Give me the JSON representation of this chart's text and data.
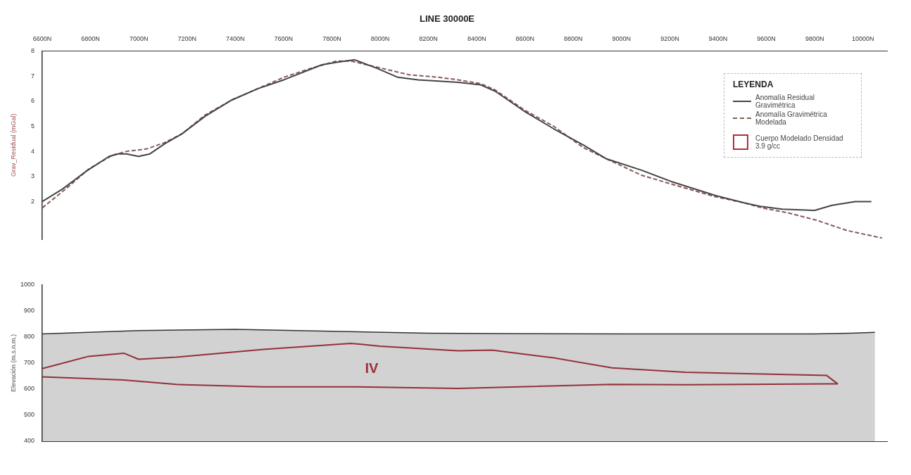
{
  "chart_data": [
    {
      "type": "line",
      "title": "LINE 30000E",
      "ylabel": "Grav_Residual (mGal)",
      "legend_title": "LEYENDA",
      "legend": "top right",
      "grid": false,
      "marker": "none",
      "xlim": [
        6600,
        10100
      ],
      "xticks": [
        {
          "value": 6600,
          "label": "6600N"
        },
        {
          "value": 6800,
          "label": "6800N"
        },
        {
          "value": 7000,
          "label": "7000N"
        },
        {
          "value": 7200,
          "label": "7200N"
        },
        {
          "value": 7400,
          "label": "7400N"
        },
        {
          "value": 7600,
          "label": "7600N"
        },
        {
          "value": 7800,
          "label": "7800N"
        },
        {
          "value": 8000,
          "label": "8000N"
        },
        {
          "value": 8200,
          "label": "8200N"
        },
        {
          "value": 8400,
          "label": "8400N"
        },
        {
          "value": 8600,
          "label": "8600N"
        },
        {
          "value": 8800,
          "label": "8800N"
        },
        {
          "value": 9000,
          "label": "9000N"
        },
        {
          "value": 9200,
          "label": "9200N"
        },
        {
          "value": 9400,
          "label": "9400N"
        },
        {
          "value": 9600,
          "label": "9600N"
        },
        {
          "value": 9800,
          "label": "9800N"
        },
        {
          "value": 10000,
          "label": "10000N"
        }
      ],
      "ylim": [
        0.5,
        8
      ],
      "yticks": [
        2,
        3,
        4,
        5,
        6,
        7,
        8
      ],
      "series": [
        {
          "name": "Anomalía Residual Gravimétrica",
          "color": "#444444",
          "line_style": "solid",
          "x": [
            6600,
            6684,
            6781,
            6877,
            6914,
            6949,
            6999,
            7046,
            7107,
            7179,
            7275,
            7386,
            7494,
            7601,
            7759,
            7820,
            7893,
            7989,
            8073,
            8157,
            8242,
            8323,
            8416,
            8476,
            8597,
            8719,
            8842,
            8938,
            9083,
            9206,
            9386,
            9508,
            9581,
            9666,
            9800,
            9872,
            9968,
            10035
          ],
          "values": [
            2.0,
            2.5,
            3.2,
            3.8,
            3.9,
            3.9,
            3.8,
            3.9,
            4.3,
            4.7,
            5.4,
            6.05,
            6.5,
            6.85,
            7.45,
            7.55,
            7.65,
            7.3,
            6.95,
            6.85,
            6.8,
            6.75,
            6.65,
            6.4,
            5.6,
            4.9,
            4.25,
            3.7,
            3.25,
            2.8,
            2.25,
            1.95,
            1.8,
            1.7,
            1.65,
            1.85,
            2.0,
            2.0
          ]
        },
        {
          "name": "Anomalía Gravimétrica Modelada",
          "color": "#8a5a5a",
          "line_style": "dashed",
          "x": [
            6600,
            6697,
            6793,
            6891,
            6949,
            7034,
            7107,
            7179,
            7275,
            7386,
            7517,
            7601,
            7710,
            7820,
            7878,
            7989,
            8120,
            8242,
            8323,
            8416,
            8476,
            8597,
            8719,
            8842,
            8938,
            9083,
            9206,
            9386,
            9508,
            9581,
            9690,
            9811,
            9933,
            10079
          ],
          "values": [
            1.75,
            2.5,
            3.3,
            3.85,
            4.0,
            4.1,
            4.35,
            4.7,
            5.45,
            6.05,
            6.6,
            6.95,
            7.3,
            7.6,
            7.6,
            7.35,
            7.05,
            6.95,
            6.85,
            6.7,
            6.45,
            5.65,
            5.0,
            4.15,
            3.7,
            3.05,
            2.7,
            2.2,
            1.95,
            1.75,
            1.55,
            1.25,
            0.85,
            0.55
          ]
        }
      ]
    },
    {
      "type": "line",
      "ylabel": "Elevación (m.s.n.m.)",
      "grid": false,
      "marker": "none",
      "tick_labels": "y",
      "xlim": [
        6600,
        10100
      ],
      "ylim": [
        400,
        1000
      ],
      "yticks": [
        400,
        500,
        600,
        700,
        800,
        900,
        1000
      ],
      "annotations": [
        "IV"
      ],
      "series": [
        {
          "type": "area",
          "color": "#333333",
          "x": [
            6600,
            7000,
            7400,
            7800,
            8200,
            8600,
            9000,
            9400,
            9800,
            9950,
            10050
          ],
          "values": [
            812,
            825,
            830,
            822,
            815,
            813,
            812,
            812,
            812,
            815,
            818
          ]
        },
        {
          "name": "Cuerpo Modelado Densidad 3.9 g/cc",
          "color": "#b0303c",
          "x": [
            6600,
            6792,
            6938,
            6999,
            7156,
            7517,
            7878,
            8000,
            8323,
            8463,
            8719,
            8961,
            9264,
            9849,
            9896
          ],
          "values": [
            679,
            726,
            738,
            715,
            723,
            753,
            776,
            765,
            747,
            750,
            720,
            682,
            665,
            653,
            620
          ]
        },
        {
          "color": "#b0303c",
          "x": [
            6600,
            6938,
            7156,
            7517,
            7878,
            8323,
            8961,
            9264,
            9849,
            9896
          ],
          "values": [
            647,
            635,
            618,
            609,
            609,
            603,
            618,
            617,
            620,
            620
          ]
        }
      ]
    }
  ]
}
